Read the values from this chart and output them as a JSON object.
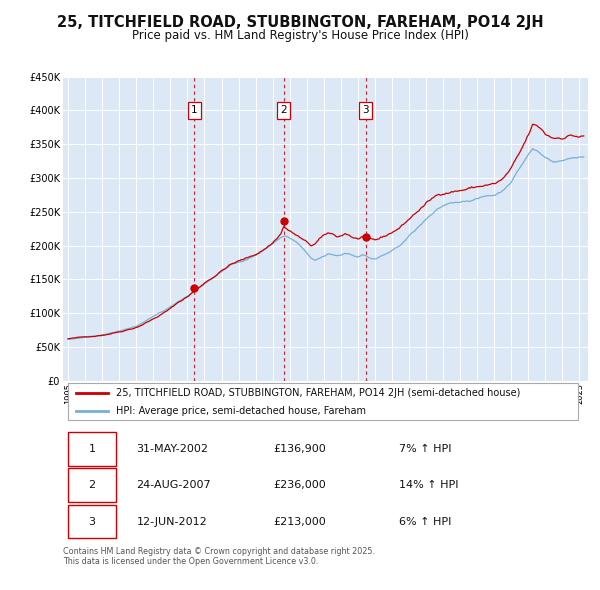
{
  "title": "25, TITCHFIELD ROAD, STUBBINGTON, FAREHAM, PO14 2JH",
  "subtitle": "Price paid vs. HM Land Registry's House Price Index (HPI)",
  "title_fontsize": 10.5,
  "subtitle_fontsize": 8.5,
  "background_color": "#ffffff",
  "plot_bg_color": "#dce8f5",
  "grid_color": "#ffffff",
  "ylim": [
    0,
    450000
  ],
  "yticks": [
    0,
    50000,
    100000,
    150000,
    200000,
    250000,
    300000,
    350000,
    400000,
    450000
  ],
  "ytick_labels": [
    "£0",
    "£50K",
    "£100K",
    "£150K",
    "£200K",
    "£250K",
    "£300K",
    "£350K",
    "£400K",
    "£450K"
  ],
  "price_color": "#cc0000",
  "hpi_color": "#7bafd4",
  "sale_marker_color": "#cc0000",
  "vline_color": "#cc0000",
  "purchases": [
    {
      "label": "1",
      "date_num": 2002.41,
      "price": 136900
    },
    {
      "label": "2",
      "date_num": 2007.65,
      "price": 236000
    },
    {
      "label": "3",
      "date_num": 2012.45,
      "price": 213000
    }
  ],
  "legend_price_label": "25, TITCHFIELD ROAD, STUBBINGTON, FAREHAM, PO14 2JH (semi-detached house)",
  "legend_hpi_label": "HPI: Average price, semi-detached house, Fareham",
  "footer_text": "Contains HM Land Registry data © Crown copyright and database right 2025.\nThis data is licensed under the Open Government Licence v3.0.",
  "table_rows": [
    {
      "num": "1",
      "date": "31-MAY-2002",
      "price": "£136,900",
      "pct": "7% ↑ HPI"
    },
    {
      "num": "2",
      "date": "24-AUG-2007",
      "price": "£236,000",
      "pct": "14% ↑ HPI"
    },
    {
      "num": "3",
      "date": "12-JUN-2012",
      "price": "£213,000",
      "pct": "6% ↑ HPI"
    }
  ]
}
